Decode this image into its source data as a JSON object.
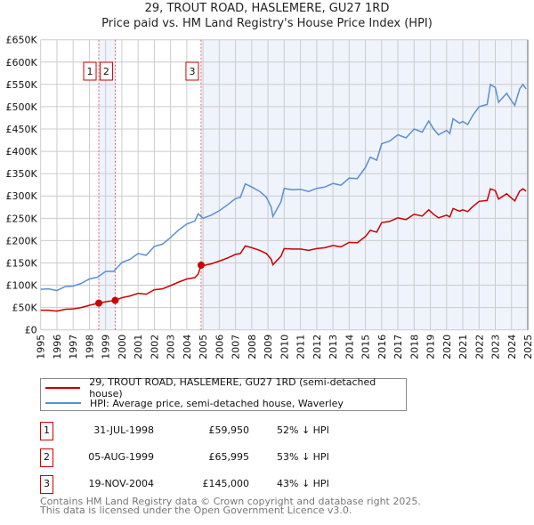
{
  "chart_data": {
    "type": "line",
    "title": "29, TROUT ROAD, HASLEMERE, GU27 1RD",
    "subtitle": "Price paid vs. HM Land Registry's House Price Index (HPI)",
    "xlim": [
      1995,
      2025
    ],
    "ylim": [
      0,
      650000
    ],
    "x_ticks": [
      "1995",
      "1996",
      "1997",
      "1998",
      "1999",
      "2000",
      "2001",
      "2002",
      "2003",
      "2004",
      "2005",
      "2006",
      "2007",
      "2008",
      "2009",
      "2010",
      "2011",
      "2012",
      "2013",
      "2014",
      "2015",
      "2016",
      "2017",
      "2018",
      "2019",
      "2020",
      "2021",
      "2022",
      "2023",
      "2024",
      "2025"
    ],
    "y_ticks": [
      {
        "v": 0,
        "label": "£0"
      },
      {
        "v": 50000,
        "label": "£50K"
      },
      {
        "v": 100000,
        "label": "£100K"
      },
      {
        "v": 150000,
        "label": "£150K"
      },
      {
        "v": 200000,
        "label": "£200K"
      },
      {
        "v": 250000,
        "label": "£250K"
      },
      {
        "v": 300000,
        "label": "£300K"
      },
      {
        "v": 350000,
        "label": "£350K"
      },
      {
        "v": 400000,
        "label": "£400K"
      },
      {
        "v": 450000,
        "label": "£450K"
      },
      {
        "v": 500000,
        "label": "£500K"
      },
      {
        "v": 550000,
        "label": "£550K"
      },
      {
        "v": 600000,
        "label": "£600K"
      },
      {
        "v": 650000,
        "label": "£650K"
      }
    ],
    "grid": true,
    "legend_placement": "below",
    "series": [
      {
        "name": "29, TROUT ROAD, HASLEMERE, GU27 1RD (semi-detached house)",
        "color": "#cc0000",
        "x": [
          1995,
          1995.5,
          1996,
          1996.5,
          1997,
          1997.5,
          1998,
          1998.58,
          1999,
          1999.59,
          2000,
          2000.5,
          2001,
          2001.5,
          2002,
          2002.5,
          2003,
          2003.5,
          2004,
          2004.5,
          2004.7,
          2004.88,
          2005,
          2005.5,
          2006,
          2006.5,
          2007,
          2007.3,
          2007.6,
          2008,
          2008.5,
          2008.9,
          2009.2,
          2009.3,
          2009.8,
          2010,
          2010.5,
          2011,
          2011.5,
          2012,
          2012.5,
          2013,
          2013.5,
          2014,
          2014.5,
          2015,
          2015.3,
          2015.7,
          2016,
          2016.5,
          2017,
          2017.5,
          2018,
          2018.5,
          2018.9,
          2019.2,
          2019.5,
          2020,
          2020.2,
          2020.4,
          2020.8,
          2021,
          2021.3,
          2021.6,
          2022,
          2022.5,
          2022.7,
          2023,
          2023.2,
          2023.7,
          2024,
          2024.2,
          2024.5,
          2024.7,
          2024.9
        ],
        "y": [
          44000,
          44000,
          42000,
          46000,
          47000,
          50000,
          55000,
          59950,
          63000,
          65995,
          72000,
          76000,
          82000,
          80000,
          90000,
          92000,
          99000,
          107000,
          114000,
          117000,
          125000,
          145000,
          144000,
          148000,
          154000,
          161000,
          169000,
          171000,
          188000,
          184000,
          178000,
          171000,
          158000,
          146000,
          165000,
          182000,
          181000,
          181000,
          178000,
          182000,
          184000,
          189000,
          186000,
          196000,
          195000,
          209000,
          223000,
          219000,
          240000,
          243000,
          251000,
          247000,
          259000,
          255000,
          269000,
          259000,
          251000,
          257000,
          253000,
          272000,
          266000,
          269000,
          265000,
          276000,
          288000,
          290000,
          316000,
          312000,
          293000,
          305000,
          295000,
          289000,
          311000,
          316000,
          311000
        ]
      },
      {
        "name": "HPI: Average price, semi-detached house, Waverley",
        "color": "#5b8fd0",
        "x": [
          1995,
          1995.5,
          1996,
          1996.5,
          1997,
          1997.5,
          1998,
          1998.5,
          1999,
          1999.5,
          2000,
          2000.5,
          2001,
          2001.5,
          2002,
          2002.5,
          2003,
          2003.5,
          2004,
          2004.5,
          2004.7,
          2005,
          2005.5,
          2006,
          2006.5,
          2007,
          2007.3,
          2007.6,
          2008,
          2008.5,
          2008.9,
          2009.2,
          2009.3,
          2009.8,
          2010,
          2010.5,
          2011,
          2011.5,
          2012,
          2012.5,
          2013,
          2013.5,
          2014,
          2014.5,
          2015,
          2015.3,
          2015.7,
          2016,
          2016.5,
          2017,
          2017.5,
          2018,
          2018.5,
          2018.9,
          2019.2,
          2019.5,
          2020,
          2020.2,
          2020.4,
          2020.8,
          2021,
          2021.3,
          2021.6,
          2022,
          2022.5,
          2022.7,
          2023,
          2023.2,
          2023.7,
          2024,
          2024.2,
          2024.5,
          2024.7,
          2024.9
        ],
        "y": [
          91000,
          92000,
          88000,
          97000,
          98000,
          104000,
          114000,
          118000,
          131000,
          131000,
          151000,
          158000,
          171000,
          167000,
          187000,
          192000,
          207000,
          224000,
          237000,
          244000,
          260000,
          250000,
          257000,
          267000,
          280000,
          294000,
          297000,
          327000,
          320000,
          310000,
          297000,
          275000,
          254000,
          287000,
          317000,
          314000,
          315000,
          310000,
          317000,
          320000,
          328000,
          324000,
          340000,
          339000,
          364000,
          387000,
          380000,
          417000,
          423000,
          437000,
          430000,
          450000,
          443000,
          468000,
          450000,
          437000,
          447000,
          440000,
          473000,
          463000,
          467000,
          460000,
          480000,
          500000,
          505000,
          550000,
          543000,
          510000,
          530000,
          513000,
          503000,
          540000,
          550000,
          540000
        ]
      }
    ],
    "sales": [
      {
        "num": "1",
        "x": 1998.58,
        "price": 59950,
        "date": "31-JUL-1998",
        "price_label": "£59,950",
        "diff": "52% ↓ HPI"
      },
      {
        "num": "2",
        "x": 1999.59,
        "price": 65995,
        "date": "05-AUG-1999",
        "price_label": "£65,995",
        "diff": "53% ↓ HPI"
      },
      {
        "num": "3",
        "x": 2004.88,
        "price": 145000,
        "date": "19-NOV-2004",
        "price_label": "£145,000",
        "diff": "43% ↓ HPI"
      }
    ],
    "shaded_ranges": [
      [
        1998.58,
        1999.59
      ],
      [
        2004.88,
        2025
      ]
    ]
  },
  "legend": {
    "property": "29, TROUT ROAD, HASLEMERE, GU27 1RD (semi-detached house)",
    "hpi": "HPI: Average price, semi-detached house, Waverley"
  },
  "footer": {
    "line1": "Contains HM Land Registry data © Crown copyright and database right 2025.",
    "line2": "This data is licensed under the Open Government Licence v3.0."
  }
}
